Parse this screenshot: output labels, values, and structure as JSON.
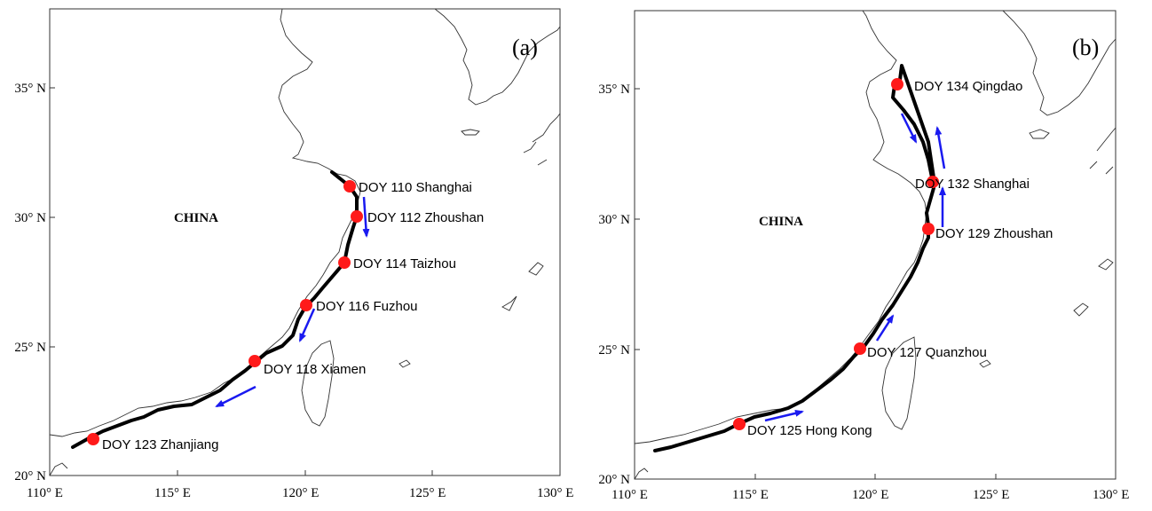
{
  "colors": {
    "track": "#000000",
    "stop": "#ff1a1a",
    "arrow": "#1a1af0",
    "coast": "#333333"
  },
  "panels": [
    {
      "label": "(a)",
      "country": "CHINA",
      "x_ticks": [
        "110° E",
        "115° E",
        "120° E",
        "125° E",
        "130° E"
      ],
      "y_ticks": [
        "20° N",
        "25° N",
        "30° N",
        "35° N"
      ],
      "stops": [
        {
          "lon": 121.8,
          "lat": 31.2,
          "text": "DOY 110 Shanghai"
        },
        {
          "lon": 122.1,
          "lat": 30.0,
          "text": "DOY 112 Zhoushan"
        },
        {
          "lon": 121.5,
          "lat": 28.3,
          "text": "DOY 114 Taizhou"
        },
        {
          "lon": 120.1,
          "lat": 26.6,
          "text": "DOY 116 Fuzhou"
        },
        {
          "lon": 118.1,
          "lat": 24.4,
          "text": "DOY 118 Xiamen"
        },
        {
          "lon": 111.8,
          "lat": 21.4,
          "text": "DOY 123 Zhanjiang"
        }
      ]
    },
    {
      "label": "(b)",
      "country": "CHINA",
      "x_ticks": [
        "110° E",
        "115° E",
        "120° E",
        "125° E",
        "130° E"
      ],
      "y_ticks": [
        "20° N",
        "25° N",
        "30° N",
        "35° N"
      ],
      "stops": [
        {
          "lon": 120.8,
          "lat": 35.2,
          "text": "DOY 134 Qingdao"
        },
        {
          "lon": 122.2,
          "lat": 31.4,
          "text": "DOY 132 Shanghai"
        },
        {
          "lon": 122.0,
          "lat": 29.6,
          "text": "DOY 129 Zhoushan"
        },
        {
          "lon": 119.2,
          "lat": 25.1,
          "text": "DOY 127 Quanzhou"
        },
        {
          "lon": 114.2,
          "lat": 22.2,
          "text": "DOY 125 Hong Kong"
        }
      ]
    }
  ]
}
